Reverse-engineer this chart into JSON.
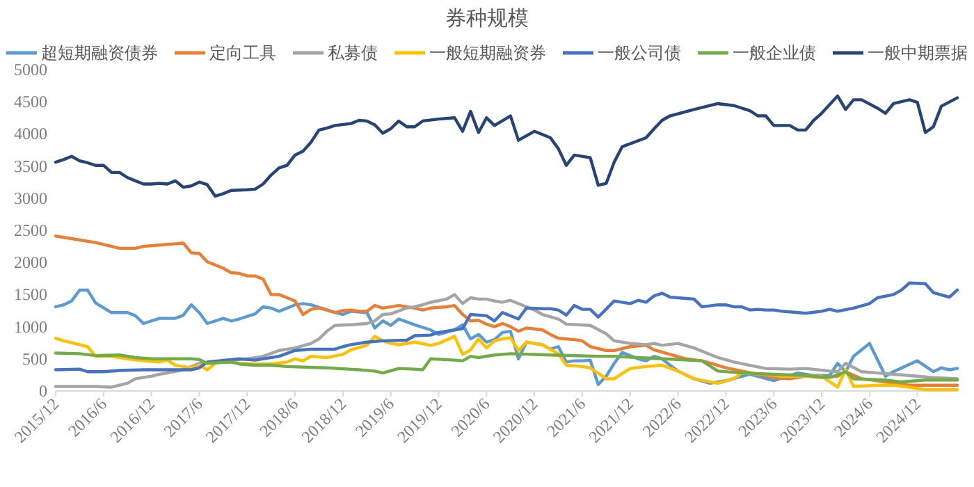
{
  "chart_data": {
    "type": "line",
    "title": "券种规模",
    "legend": "top",
    "xlim": [
      "2015-12",
      "2025-05"
    ],
    "xticks": [
      {
        "value": "2015-12",
        "label": "2015/12"
      },
      {
        "value": "2016-06",
        "label": "2016/6"
      },
      {
        "value": "2016-12",
        "label": "2016/12"
      },
      {
        "value": "2017-06",
        "label": "2017/6"
      },
      {
        "value": "2017-12",
        "label": "2017/12"
      },
      {
        "value": "2018-06",
        "label": "2018/6"
      },
      {
        "value": "2018-12",
        "label": "2018/12"
      },
      {
        "value": "2019-06",
        "label": "2019/6"
      },
      {
        "value": "2019-12",
        "label": "2019/12"
      },
      {
        "value": "2020-06",
        "label": "2020/6"
      },
      {
        "value": "2020-12",
        "label": "2020/12"
      },
      {
        "value": "2021-06",
        "label": "2021/6"
      },
      {
        "value": "2021-12",
        "label": "2021/12"
      },
      {
        "value": "2022-06",
        "label": "2022/6"
      },
      {
        "value": "2022-12",
        "label": "2022/12"
      },
      {
        "value": "2023-06",
        "label": "2023/6"
      },
      {
        "value": "2023-12",
        "label": "2023/12"
      },
      {
        "value": "2024-06",
        "label": "2024/6"
      },
      {
        "value": "2024-12",
        "label": "2024/12"
      }
    ],
    "ylim": [
      0,
      5000
    ],
    "yticks": [
      0,
      500,
      1000,
      1500,
      2000,
      2500,
      3000,
      3500,
      4000,
      4500,
      5000
    ],
    "series": [
      {
        "name": "超短期融资债券",
        "color": "#5b9bd5",
        "x": [
          "2015-12",
          "2016-01",
          "2016-02",
          "2016-03",
          "2016-04",
          "2016-05",
          "2016-07",
          "2016-09",
          "2016-10",
          "2016-11",
          "2017-01",
          "2017-03",
          "2017-04",
          "2017-05",
          "2017-06",
          "2017-07",
          "2017-09",
          "2017-10",
          "2017-11",
          "2018-01",
          "2018-02",
          "2018-03",
          "2018-04",
          "2018-06",
          "2018-07",
          "2018-08",
          "2018-10",
          "2018-12",
          "2019-01",
          "2019-03",
          "2019-04",
          "2019-05",
          "2019-06",
          "2019-07",
          "2019-09",
          "2019-11",
          "2019-12",
          "2020-02",
          "2020-03",
          "2020-04",
          "2020-05",
          "2020-06",
          "2020-07",
          "2020-08",
          "2020-09",
          "2020-10",
          "2020-11",
          "2021-01",
          "2021-02",
          "2021-03",
          "2021-04",
          "2021-05",
          "2021-06",
          "2021-07",
          "2021-08",
          "2021-09",
          "2021-10",
          "2021-11",
          "2022-01",
          "2022-02",
          "2022-03",
          "2022-04",
          "2022-05",
          "2022-06",
          "2022-08",
          "2022-10",
          "2022-12",
          "2023-03",
          "2023-06",
          "2023-09",
          "2023-11",
          "2024-01",
          "2024-02",
          "2024-03",
          "2024-04",
          "2024-06",
          "2024-08",
          "2024-09",
          "2024-12",
          "2025-02",
          "2025-03",
          "2025-04",
          "2025-05"
        ],
        "values": [
          1310,
          1340,
          1400,
          1570,
          1570,
          1370,
          1220,
          1220,
          1170,
          1050,
          1130,
          1130,
          1180,
          1340,
          1220,
          1050,
          1130,
          1090,
          1120,
          1200,
          1310,
          1290,
          1240,
          1340,
          1360,
          1340,
          1260,
          1190,
          1240,
          1220,
          980,
          1090,
          1020,
          1120,
          1030,
          950,
          880,
          950,
          1030,
          810,
          880,
          760,
          800,
          910,
          930,
          500,
          760,
          720,
          650,
          690,
          450,
          470,
          470,
          480,
          100,
          230,
          430,
          600,
          500,
          470,
          540,
          500,
          400,
          310,
          190,
          120,
          160,
          260,
          160,
          280,
          240,
          240,
          430,
          300,
          540,
          740,
          230,
          300,
          470,
          300,
          360,
          330,
          350
        ]
      },
      {
        "name": "定向工具",
        "color": "#ed7d31",
        "x": [
          "2015-12",
          "2016-02",
          "2016-05",
          "2016-08",
          "2016-10",
          "2016-11",
          "2017-01",
          "2017-03",
          "2017-04",
          "2017-05",
          "2017-06",
          "2017-07",
          "2017-09",
          "2017-10",
          "2017-11",
          "2017-12",
          "2018-01",
          "2018-02",
          "2018-03",
          "2018-04",
          "2018-05",
          "2018-06",
          "2018-07",
          "2018-08",
          "2018-09",
          "2018-10",
          "2018-11",
          "2018-12",
          "2019-01",
          "2019-02",
          "2019-03",
          "2019-04",
          "2019-05",
          "2019-07",
          "2019-08",
          "2019-09",
          "2019-10",
          "2019-11",
          "2020-01",
          "2020-02",
          "2020-03",
          "2020-04",
          "2020-05",
          "2020-06",
          "2020-07",
          "2020-08",
          "2020-09",
          "2020-10",
          "2020-11",
          "2021-01",
          "2021-02",
          "2021-03",
          "2021-05",
          "2021-06",
          "2021-07",
          "2021-09",
          "2021-10",
          "2021-12",
          "2022-02",
          "2022-03",
          "2022-05",
          "2022-07",
          "2022-09",
          "2022-11",
          "2022-12",
          "2023-02",
          "2023-04",
          "2023-06",
          "2023-08",
          "2023-10",
          "2023-12",
          "2024-02",
          "2024-03",
          "2024-05",
          "2024-07",
          "2024-09",
          "2024-11",
          "2025-05"
        ],
        "values": [
          2410,
          2370,
          2310,
          2220,
          2220,
          2250,
          2270,
          2290,
          2300,
          2150,
          2140,
          2010,
          1910,
          1840,
          1830,
          1790,
          1790,
          1740,
          1500,
          1500,
          1450,
          1400,
          1190,
          1270,
          1290,
          1260,
          1220,
          1250,
          1260,
          1240,
          1240,
          1330,
          1290,
          1330,
          1310,
          1290,
          1260,
          1290,
          1310,
          1330,
          1190,
          1090,
          1100,
          1040,
          1000,
          1050,
          1000,
          930,
          980,
          950,
          880,
          820,
          800,
          780,
          690,
          630,
          630,
          690,
          710,
          640,
          570,
          500,
          470,
          400,
          360,
          310,
          260,
          210,
          190,
          230,
          210,
          230,
          300,
          190,
          160,
          120,
          90,
          90
        ]
      },
      {
        "name": "私募债",
        "color": "#a5a5a5",
        "x": [
          "2015-12",
          "2016-05",
          "2016-07",
          "2016-09",
          "2016-10",
          "2016-12",
          "2017-01",
          "2017-02",
          "2017-04",
          "2017-06",
          "2017-09",
          "2017-12",
          "2018-02",
          "2018-04",
          "2018-06",
          "2018-08",
          "2018-09",
          "2018-10",
          "2018-11",
          "2019-01",
          "2019-03",
          "2019-04",
          "2019-05",
          "2019-06",
          "2019-08",
          "2019-09",
          "2019-10",
          "2019-11",
          "2020-01",
          "2020-02",
          "2020-03",
          "2020-04",
          "2020-05",
          "2020-06",
          "2020-07",
          "2020-08",
          "2020-09",
          "2020-11",
          "2020-12",
          "2021-01",
          "2021-03",
          "2021-04",
          "2021-07",
          "2021-09",
          "2021-10",
          "2021-12",
          "2022-02",
          "2022-03",
          "2022-04",
          "2022-06",
          "2022-08",
          "2022-11",
          "2023-01",
          "2023-03",
          "2023-05",
          "2023-08",
          "2023-10",
          "2024-01",
          "2024-02",
          "2024-03",
          "2024-05",
          "2024-07",
          "2024-09",
          "2024-12",
          "2025-02",
          "2025-05"
        ],
        "values": [
          70,
          70,
          60,
          120,
          190,
          230,
          260,
          280,
          330,
          430,
          470,
          500,
          540,
          630,
          670,
          740,
          810,
          930,
          1020,
          1030,
          1050,
          1090,
          1190,
          1200,
          1290,
          1310,
          1340,
          1380,
          1430,
          1500,
          1360,
          1450,
          1430,
          1430,
          1400,
          1380,
          1410,
          1310,
          1260,
          1190,
          1120,
          1040,
          1020,
          890,
          780,
          740,
          720,
          740,
          710,
          740,
          670,
          520,
          450,
          400,
          350,
          340,
          350,
          310,
          300,
          430,
          300,
          280,
          260,
          230,
          210,
          190
        ]
      },
      {
        "name": "一般短期融资券",
        "color": "#ffc000",
        "x": [
          "2015-12",
          "2016-01",
          "2016-03",
          "2016-04",
          "2016-05",
          "2016-07",
          "2016-09",
          "2016-11",
          "2017-01",
          "2017-02",
          "2017-03",
          "2017-05",
          "2017-06",
          "2017-07",
          "2017-08",
          "2017-09",
          "2017-11",
          "2018-01",
          "2018-03",
          "2018-05",
          "2018-06",
          "2018-07",
          "2018-08",
          "2018-10",
          "2018-12",
          "2019-01",
          "2019-03",
          "2019-04",
          "2019-05",
          "2019-06",
          "2019-07",
          "2019-09",
          "2019-11",
          "2019-12",
          "2020-02",
          "2020-03",
          "2020-04",
          "2020-05",
          "2020-06",
          "2020-07",
          "2020-08",
          "2020-09",
          "2020-10",
          "2020-11",
          "2021-01",
          "2021-03",
          "2021-04",
          "2021-06",
          "2021-07",
          "2021-09",
          "2021-10",
          "2021-12",
          "2022-02",
          "2022-04",
          "2022-06",
          "2022-08",
          "2022-11",
          "2023-01",
          "2023-02",
          "2023-05",
          "2023-07",
          "2023-10",
          "2023-12",
          "2024-02",
          "2024-03",
          "2024-04",
          "2024-07",
          "2024-09",
          "2024-11",
          "2025-01",
          "2025-05"
        ],
        "values": [
          820,
          780,
          720,
          690,
          540,
          540,
          500,
          470,
          450,
          480,
          400,
          360,
          400,
          330,
          430,
          480,
          430,
          420,
          420,
          450,
          500,
          470,
          540,
          520,
          570,
          640,
          710,
          850,
          780,
          740,
          720,
          760,
          710,
          740,
          850,
          570,
          640,
          810,
          670,
          780,
          810,
          830,
          630,
          760,
          720,
          580,
          400,
          380,
          360,
          190,
          190,
          350,
          380,
          400,
          310,
          190,
          120,
          190,
          280,
          260,
          230,
          230,
          230,
          60,
          330,
          70,
          90,
          90,
          60,
          20,
          20
        ]
      },
      {
        "name": "一般公司债",
        "color": "#4472c4",
        "x": [
          "2015-12",
          "2016-03",
          "2016-04",
          "2016-06",
          "2016-08",
          "2016-11",
          "2017-05",
          "2017-06",
          "2017-07",
          "2017-11",
          "2018-01",
          "2018-04",
          "2018-06",
          "2018-08",
          "2018-11",
          "2018-12",
          "2019-01",
          "2019-03",
          "2019-05",
          "2019-08",
          "2019-09",
          "2019-11",
          "2019-12",
          "2020-02",
          "2020-03",
          "2020-04",
          "2020-06",
          "2020-07",
          "2020-08",
          "2020-10",
          "2020-11",
          "2021-01",
          "2021-02",
          "2021-03",
          "2021-04",
          "2021-05",
          "2021-06",
          "2021-07",
          "2021-08",
          "2021-10",
          "2021-12",
          "2022-01",
          "2022-02",
          "2022-03",
          "2022-04",
          "2022-05",
          "2022-07",
          "2022-08",
          "2022-09",
          "2022-11",
          "2022-12",
          "2023-01",
          "2023-02",
          "2023-03",
          "2023-04",
          "2023-05",
          "2023-06",
          "2023-07",
          "2023-09",
          "2023-10",
          "2023-12",
          "2024-01",
          "2024-02",
          "2024-04",
          "2024-06",
          "2024-07",
          "2024-09",
          "2024-10",
          "2024-11",
          "2025-01",
          "2025-02",
          "2025-04",
          "2025-05"
        ],
        "values": [
          330,
          340,
          300,
          300,
          320,
          330,
          330,
          360,
          450,
          500,
          480,
          540,
          630,
          650,
          650,
          690,
          720,
          760,
          780,
          790,
          860,
          870,
          910,
          950,
          970,
          1190,
          1170,
          1090,
          1220,
          1120,
          1290,
          1280,
          1280,
          1260,
          1180,
          1330,
          1270,
          1270,
          1150,
          1400,
          1360,
          1410,
          1380,
          1480,
          1520,
          1460,
          1440,
          1430,
          1310,
          1340,
          1340,
          1310,
          1310,
          1260,
          1270,
          1260,
          1260,
          1240,
          1220,
          1210,
          1240,
          1270,
          1240,
          1290,
          1360,
          1450,
          1500,
          1570,
          1680,
          1670,
          1530,
          1460,
          1570
        ]
      },
      {
        "name": "一般企业债",
        "color": "#70ad47",
        "x": [
          "2015-12",
          "2016-03",
          "2016-05",
          "2016-08",
          "2016-10",
          "2016-12",
          "2017-05",
          "2017-06",
          "2017-07",
          "2017-10",
          "2017-11",
          "2018-01",
          "2018-03",
          "2018-05",
          "2018-10",
          "2019-02",
          "2019-04",
          "2019-05",
          "2019-07",
          "2019-09",
          "2019-10",
          "2019-11",
          "2020-02",
          "2020-03",
          "2020-04",
          "2020-05",
          "2020-07",
          "2020-09",
          "2021-02",
          "2021-08",
          "2021-10",
          "2022-01",
          "2022-06",
          "2022-09",
          "2022-11",
          "2023-02",
          "2023-06",
          "2023-10",
          "2024-01",
          "2024-03",
          "2024-04",
          "2024-08",
          "2024-10",
          "2025-01",
          "2025-05"
        ],
        "values": [
          590,
          580,
          550,
          560,
          520,
          500,
          500,
          490,
          430,
          450,
          420,
          400,
          400,
          380,
          360,
          330,
          310,
          280,
          350,
          340,
          330,
          500,
          480,
          470,
          540,
          520,
          560,
          580,
          560,
          540,
          540,
          520,
          490,
          470,
          310,
          280,
          260,
          240,
          210,
          300,
          190,
          170,
          140,
          170,
          170
        ]
      },
      {
        "name": "一般中期票据",
        "color": "#264478",
        "x": [
          "2015-12",
          "2016-01",
          "2016-02",
          "2016-03",
          "2016-04",
          "2016-05",
          "2016-06",
          "2016-07",
          "2016-08",
          "2016-09",
          "2016-10",
          "2016-11",
          "2016-12",
          "2017-01",
          "2017-02",
          "2017-03",
          "2017-04",
          "2017-05",
          "2017-06",
          "2017-07",
          "2017-08",
          "2017-09",
          "2017-10",
          "2017-12",
          "2018-01",
          "2018-02",
          "2018-03",
          "2018-04",
          "2018-05",
          "2018-06",
          "2018-07",
          "2018-08",
          "2018-09",
          "2018-10",
          "2018-11",
          "2019-01",
          "2019-02",
          "2019-03",
          "2019-04",
          "2019-05",
          "2019-06",
          "2019-07",
          "2019-08",
          "2019-09",
          "2019-10",
          "2019-12",
          "2020-02",
          "2020-03",
          "2020-04",
          "2020-05",
          "2020-06",
          "2020-07",
          "2020-09",
          "2020-10",
          "2020-12",
          "2021-01",
          "2021-02",
          "2021-03",
          "2021-04",
          "2021-05",
          "2021-07",
          "2021-08",
          "2021-09",
          "2021-10",
          "2021-11",
          "2022-02",
          "2022-03",
          "2022-04",
          "2022-05",
          "2022-08",
          "2022-11",
          "2023-01",
          "2023-03",
          "2023-04",
          "2023-05",
          "2023-06",
          "2023-08",
          "2023-09",
          "2023-10",
          "2023-11",
          "2023-12",
          "2024-02",
          "2024-03",
          "2024-04",
          "2024-05",
          "2024-07",
          "2024-08",
          "2024-09",
          "2024-11",
          "2024-12",
          "2025-01",
          "2025-02",
          "2025-03",
          "2025-05"
        ],
        "values": [
          3560,
          3600,
          3650,
          3580,
          3550,
          3510,
          3510,
          3400,
          3400,
          3320,
          3270,
          3220,
          3220,
          3230,
          3220,
          3270,
          3170,
          3190,
          3250,
          3210,
          3030,
          3070,
          3120,
          3130,
          3140,
          3220,
          3360,
          3470,
          3510,
          3670,
          3730,
          3870,
          4060,
          4090,
          4130,
          4160,
          4210,
          4200,
          4140,
          4010,
          4080,
          4200,
          4110,
          4110,
          4200,
          4230,
          4250,
          4040,
          4350,
          4020,
          4250,
          4130,
          4280,
          3900,
          4040,
          3990,
          3940,
          3770,
          3510,
          3670,
          3630,
          3200,
          3230,
          3560,
          3800,
          3940,
          4080,
          4210,
          4280,
          4380,
          4470,
          4440,
          4360,
          4280,
          4280,
          4130,
          4130,
          4060,
          4060,
          4210,
          4320,
          4590,
          4380,
          4530,
          4530,
          4400,
          4320,
          4470,
          4530,
          4490,
          4020,
          4110,
          4430,
          4560
        ]
      }
    ]
  }
}
